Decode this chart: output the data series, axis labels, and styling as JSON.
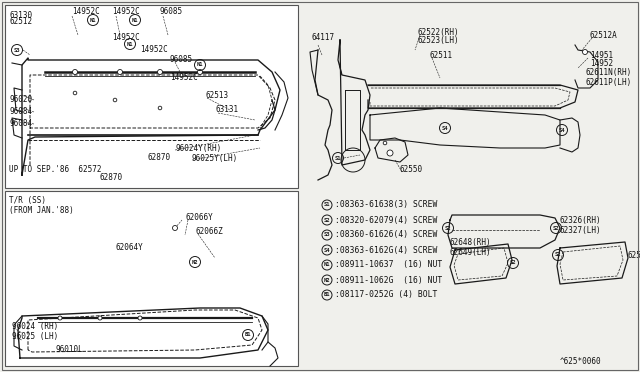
{
  "bg_color": "#f0f0ec",
  "border_color": "#444444",
  "line_color": "#1a1a1a",
  "diagram_code": "^625*0060",
  "legend_lines": [
    [
      "S",
      "1",
      "08363-61638(3) SCREW"
    ],
    [
      "S",
      "2",
      "08320-62079(4) SCREW"
    ],
    [
      "S",
      "3",
      "08360-61626(4) SCREW"
    ],
    [
      "S",
      "4",
      "08363-6162G(4) SCREW"
    ],
    [
      "N",
      "1",
      "08911-10637  (16) NUT"
    ],
    [
      "N",
      "2",
      "08911-1062G  (16) NUT"
    ],
    [
      "B",
      "1",
      "08117-0252G (4) BOLT"
    ]
  ],
  "font_size": 5.5,
  "font_size_leg": 5.8
}
